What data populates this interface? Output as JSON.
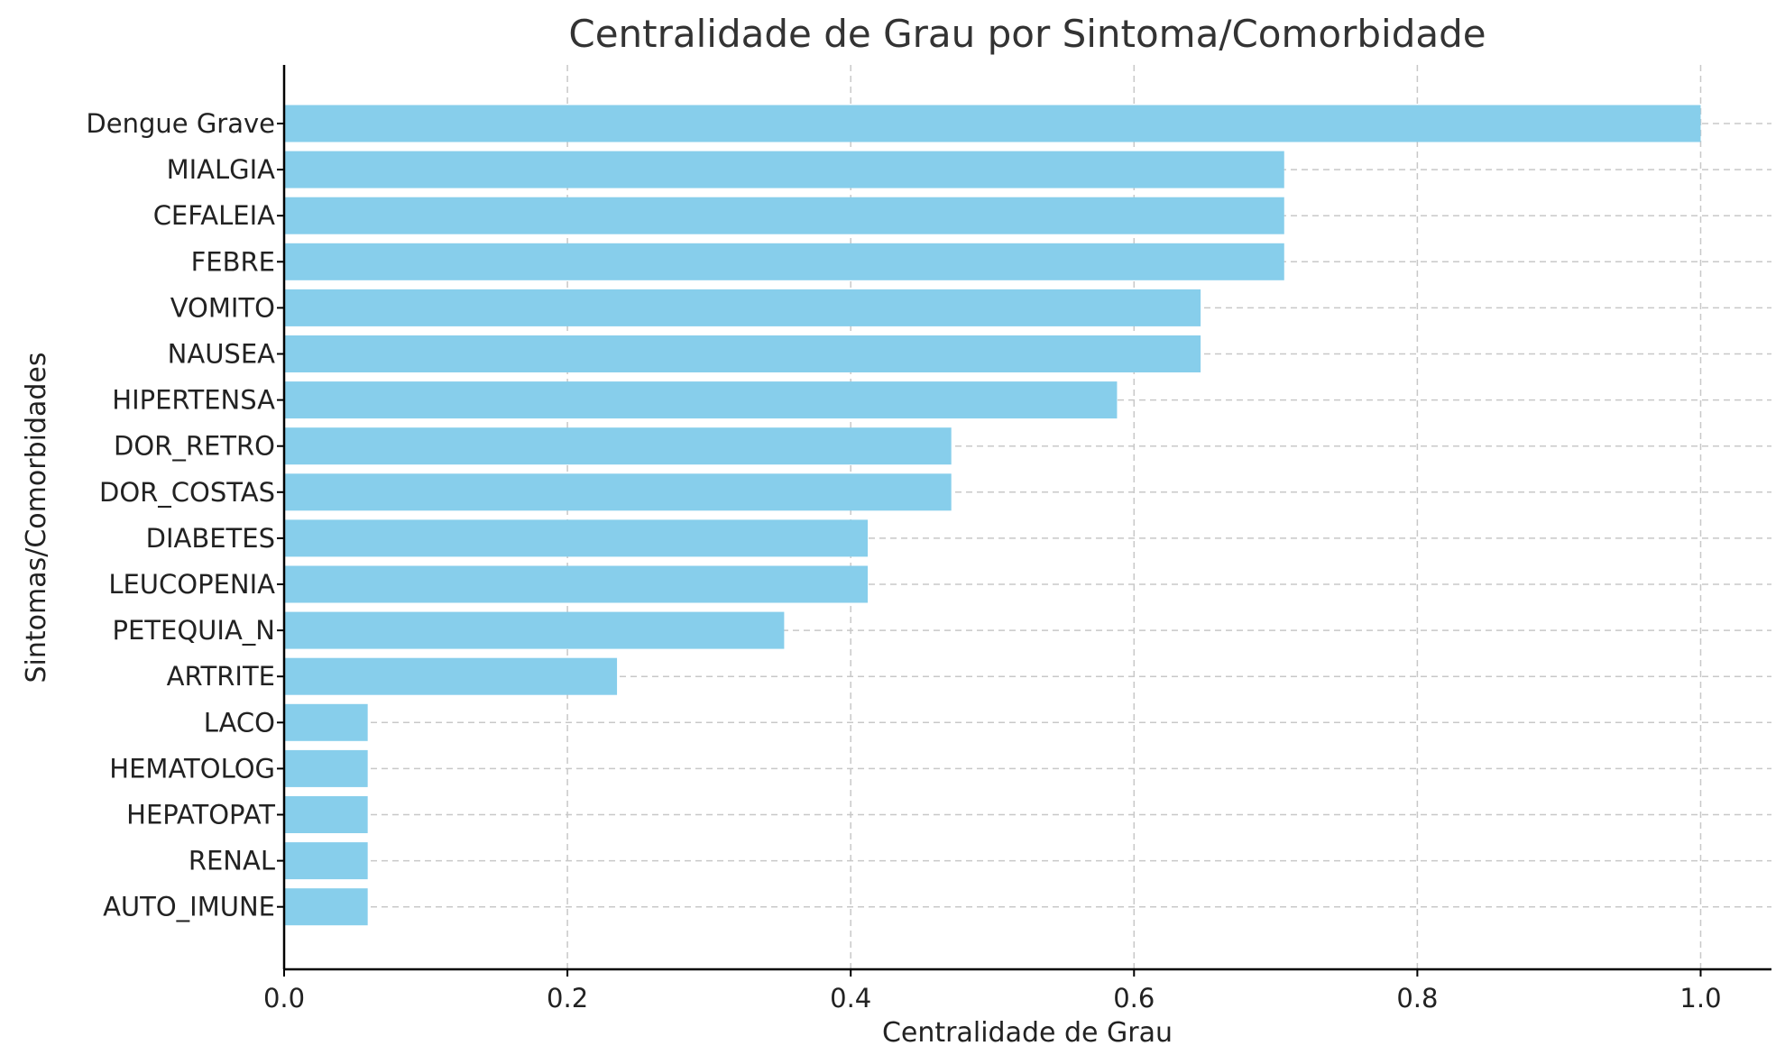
{
  "chart_data": {
    "type": "bar",
    "orientation": "horizontal",
    "title": "Centralidade de Grau por Sintoma/Comorbidade",
    "xlabel": "Centralidade de Grau",
    "ylabel": "Sintomas/Comorbidades",
    "categories": [
      "Dengue Grave",
      "MIALGIA",
      "CEFALEIA",
      "FEBRE",
      "VOMITO",
      "NAUSEA",
      "HIPERTENSA",
      "DOR_RETRO",
      "DOR_COSTAS",
      "DIABETES",
      "LEUCOPENIA",
      "PETEQUIA_N",
      "ARTRITE",
      "LACO",
      "HEMATOLOG",
      "HEPATOPAT",
      "RENAL",
      "AUTO_IMUNE"
    ],
    "values": [
      1.0,
      0.706,
      0.706,
      0.706,
      0.647,
      0.647,
      0.588,
      0.471,
      0.471,
      0.412,
      0.412,
      0.353,
      0.235,
      0.059,
      0.059,
      0.059,
      0.059,
      0.059
    ],
    "xlim": [
      0.0,
      1.05
    ],
    "xticks": [
      "0.0",
      "0.2",
      "0.4",
      "0.6",
      "0.8",
      "1.0"
    ],
    "xtick_values": [
      0.0,
      0.2,
      0.4,
      0.6,
      0.8,
      1.0
    ],
    "grid": true,
    "bar_color": "#87ceeb",
    "legend": "none"
  }
}
